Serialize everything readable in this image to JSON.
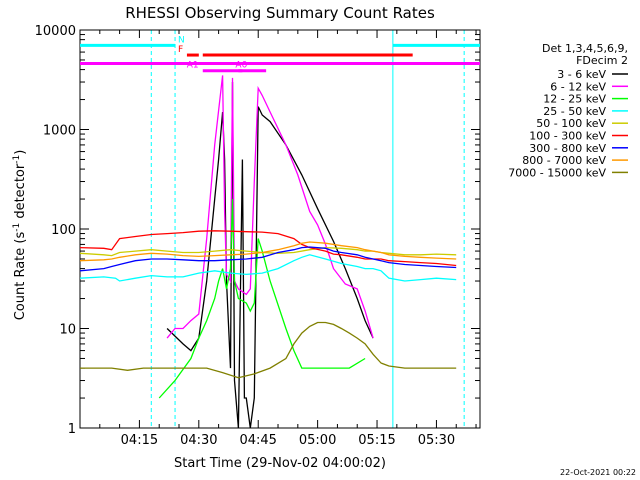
{
  "chart_data": {
    "type": "line",
    "title": "RHESSI Observing Summary Count Rates",
    "xlabel": "Start Time (29-Nov-02 04:00:02)",
    "ylabel_main": "Count Rate (s",
    "ylabel_sup1": "-1",
    "ylabel_mid": " detector",
    "ylabel_sup2": "-1",
    "ylabel_end": ")",
    "y_scale": "log",
    "ylim": [
      1,
      10000
    ],
    "xlim_minutes": [
      0,
      101
    ],
    "x_ticks": [
      {
        "t": 15,
        "label": "04:15"
      },
      {
        "t": 30,
        "label": "04:30"
      },
      {
        "t": 45,
        "label": "04:45"
      },
      {
        "t": 60,
        "label": "05:00"
      },
      {
        "t": 75,
        "label": "05:15"
      },
      {
        "t": 90,
        "label": "05:30"
      }
    ],
    "y_ticks": [
      {
        "v": 1,
        "label": "1"
      },
      {
        "v": 10,
        "label": "10"
      },
      {
        "v": 100,
        "label": "100"
      },
      {
        "v": 1000,
        "label": "1000"
      },
      {
        "v": 10000,
        "label": "10000"
      }
    ],
    "legend_header": [
      "Det 1,3,4,5,6,9,",
      "FDecim 2"
    ],
    "legend_placement": "right",
    "date_stamp": "22-Oct-2021 00:22",
    "series": [
      {
        "name": "3 - 6 keV",
        "color": "#000000",
        "points": [
          [
            22,
            10
          ],
          [
            26,
            7
          ],
          [
            28,
            6
          ],
          [
            30,
            8
          ],
          [
            32,
            30
          ],
          [
            34,
            200
          ],
          [
            35,
            500
          ],
          [
            36,
            1500
          ],
          [
            36.5,
            500
          ],
          [
            37,
            30
          ],
          [
            38,
            4
          ],
          [
            38.5,
            3000
          ],
          [
            39,
            3
          ],
          [
            40,
            1
          ],
          [
            41,
            500
          ],
          [
            41.5,
            2
          ],
          [
            42,
            2
          ],
          [
            43,
            1
          ],
          [
            44,
            2
          ],
          [
            45,
            1700
          ],
          [
            46,
            1400
          ],
          [
            48,
            1200
          ],
          [
            52,
            700
          ],
          [
            56,
            350
          ],
          [
            60,
            160
          ],
          [
            64,
            75
          ],
          [
            67,
            40
          ],
          [
            70,
            20
          ],
          [
            72,
            12
          ],
          [
            74,
            8
          ]
        ]
      },
      {
        "name": "6 - 12 keV",
        "color": "#ff00ff",
        "points": [
          [
            22,
            8
          ],
          [
            24,
            10
          ],
          [
            26,
            10
          ],
          [
            28,
            12
          ],
          [
            30,
            14
          ],
          [
            32,
            80
          ],
          [
            34,
            700
          ],
          [
            36,
            3500
          ],
          [
            36.5,
            150
          ],
          [
            37,
            35
          ],
          [
            38,
            30
          ],
          [
            38.5,
            3300
          ],
          [
            39,
            30
          ],
          [
            40,
            25
          ],
          [
            42,
            22
          ],
          [
            43,
            25
          ],
          [
            44,
            300
          ],
          [
            45,
            2600
          ],
          [
            46,
            2200
          ],
          [
            48,
            1500
          ],
          [
            52,
            700
          ],
          [
            55,
            350
          ],
          [
            58,
            150
          ],
          [
            60,
            110
          ],
          [
            62,
            70
          ],
          [
            64,
            40
          ],
          [
            67,
            28
          ],
          [
            70,
            25
          ],
          [
            72,
            15
          ],
          [
            74,
            8
          ]
        ]
      },
      {
        "name": "12 - 25 keV",
        "color": "#00ff00",
        "points": [
          [
            20,
            2
          ],
          [
            24,
            3
          ],
          [
            28,
            5
          ],
          [
            30,
            8
          ],
          [
            32,
            12
          ],
          [
            34,
            20
          ],
          [
            35,
            30
          ],
          [
            36,
            40
          ],
          [
            37,
            25
          ],
          [
            38,
            40
          ],
          [
            38.5,
            200
          ],
          [
            39,
            30
          ],
          [
            40,
            20
          ],
          [
            42,
            18
          ],
          [
            43,
            15
          ],
          [
            44,
            18
          ],
          [
            45,
            80
          ],
          [
            46,
            60
          ],
          [
            48,
            30
          ],
          [
            52,
            10
          ],
          [
            54,
            6
          ],
          [
            56,
            4
          ],
          [
            58,
            4
          ],
          [
            62,
            4
          ],
          [
            64,
            4
          ],
          [
            66,
            4
          ],
          [
            68,
            4
          ],
          [
            72,
            5
          ]
        ]
      },
      {
        "name": "25 - 50 keV",
        "color": "#00ffff",
        "points": [
          [
            0,
            32
          ],
          [
            6,
            33
          ],
          [
            9,
            32
          ],
          [
            10,
            30
          ],
          [
            14,
            32
          ],
          [
            18,
            34
          ],
          [
            22,
            33
          ],
          [
            26,
            33
          ],
          [
            30,
            36
          ],
          [
            34,
            38
          ],
          [
            38,
            36
          ],
          [
            42,
            35
          ],
          [
            46,
            36
          ],
          [
            50,
            40
          ],
          [
            54,
            48
          ],
          [
            56,
            52
          ],
          [
            58,
            55
          ],
          [
            62,
            50
          ],
          [
            66,
            45
          ],
          [
            70,
            42
          ],
          [
            72,
            40
          ],
          [
            74,
            40
          ],
          [
            76,
            38
          ],
          [
            78,
            32
          ],
          [
            82,
            30
          ],
          [
            86,
            31
          ],
          [
            90,
            32
          ],
          [
            95,
            31
          ]
        ]
      },
      {
        "name": "50 - 100 keV",
        "color": "#cccc00",
        "points": [
          [
            0,
            57
          ],
          [
            6,
            55
          ],
          [
            8,
            54
          ],
          [
            10,
            58
          ],
          [
            14,
            60
          ],
          [
            18,
            62
          ],
          [
            22,
            60
          ],
          [
            26,
            58
          ],
          [
            30,
            58
          ],
          [
            34,
            60
          ],
          [
            38,
            62
          ],
          [
            42,
            60
          ],
          [
            46,
            58
          ],
          [
            50,
            57
          ],
          [
            54,
            58
          ],
          [
            58,
            62
          ],
          [
            62,
            65
          ],
          [
            66,
            64
          ],
          [
            70,
            62
          ],
          [
            72,
            60
          ],
          [
            74,
            60
          ],
          [
            76,
            58
          ],
          [
            78,
            57
          ],
          [
            82,
            55
          ],
          [
            86,
            55
          ],
          [
            90,
            56
          ],
          [
            95,
            55
          ]
        ]
      },
      {
        "name": "100 - 300 keV",
        "color": "#ff0000",
        "points": [
          [
            0,
            65
          ],
          [
            6,
            64
          ],
          [
            8,
            62
          ],
          [
            10,
            80
          ],
          [
            14,
            84
          ],
          [
            18,
            88
          ],
          [
            22,
            90
          ],
          [
            26,
            92
          ],
          [
            30,
            95
          ],
          [
            34,
            96
          ],
          [
            38,
            95
          ],
          [
            42,
            94
          ],
          [
            46,
            93
          ],
          [
            50,
            90
          ],
          [
            54,
            80
          ],
          [
            56,
            70
          ],
          [
            58,
            65
          ],
          [
            62,
            60
          ],
          [
            64,
            56
          ],
          [
            66,
            55
          ],
          [
            70,
            52
          ],
          [
            72,
            50
          ],
          [
            74,
            50
          ],
          [
            76,
            50
          ],
          [
            78,
            48
          ],
          [
            82,
            47
          ],
          [
            86,
            46
          ],
          [
            90,
            45
          ],
          [
            95,
            43
          ]
        ]
      },
      {
        "name": "300 - 800 keV",
        "color": "#0000ff",
        "points": [
          [
            0,
            38
          ],
          [
            6,
            40
          ],
          [
            8,
            42
          ],
          [
            10,
            44
          ],
          [
            14,
            48
          ],
          [
            18,
            50
          ],
          [
            22,
            50
          ],
          [
            26,
            49
          ],
          [
            30,
            48
          ],
          [
            34,
            48
          ],
          [
            38,
            49
          ],
          [
            42,
            50
          ],
          [
            46,
            52
          ],
          [
            50,
            58
          ],
          [
            54,
            62
          ],
          [
            56,
            65
          ],
          [
            58,
            66
          ],
          [
            62,
            64
          ],
          [
            64,
            60
          ],
          [
            66,
            58
          ],
          [
            70,
            55
          ],
          [
            72,
            52
          ],
          [
            74,
            50
          ],
          [
            76,
            48
          ],
          [
            78,
            46
          ],
          [
            82,
            44
          ],
          [
            86,
            43
          ],
          [
            90,
            42
          ],
          [
            95,
            41
          ]
        ]
      },
      {
        "name": "800 - 7000 keV",
        "color": "#ff9900",
        "points": [
          [
            0,
            48
          ],
          [
            6,
            49
          ],
          [
            8,
            50
          ],
          [
            10,
            52
          ],
          [
            14,
            55
          ],
          [
            18,
            57
          ],
          [
            22,
            56
          ],
          [
            26,
            54
          ],
          [
            30,
            53
          ],
          [
            34,
            54
          ],
          [
            38,
            55
          ],
          [
            42,
            56
          ],
          [
            46,
            58
          ],
          [
            50,
            62
          ],
          [
            54,
            68
          ],
          [
            56,
            72
          ],
          [
            58,
            74
          ],
          [
            62,
            72
          ],
          [
            66,
            68
          ],
          [
            70,
            65
          ],
          [
            72,
            62
          ],
          [
            74,
            60
          ],
          [
            76,
            58
          ],
          [
            78,
            55
          ],
          [
            82,
            53
          ],
          [
            86,
            52
          ],
          [
            90,
            51
          ],
          [
            95,
            50
          ]
        ]
      },
      {
        "name": "7000 - 15000 keV",
        "color": "#808000",
        "points": [
          [
            0,
            4
          ],
          [
            8,
            4
          ],
          [
            12,
            3.8
          ],
          [
            16,
            4
          ],
          [
            20,
            4
          ],
          [
            26,
            4
          ],
          [
            32,
            4
          ],
          [
            36,
            3.6
          ],
          [
            40,
            3.2
          ],
          [
            44,
            3.5
          ],
          [
            48,
            4
          ],
          [
            52,
            5
          ],
          [
            54,
            7
          ],
          [
            56,
            9
          ],
          [
            58,
            10.5
          ],
          [
            60,
            11.5
          ],
          [
            62,
            11.5
          ],
          [
            64,
            11
          ],
          [
            66,
            10
          ],
          [
            68,
            9
          ],
          [
            70,
            8
          ],
          [
            72,
            7
          ],
          [
            74,
            5.5
          ],
          [
            76,
            4.5
          ],
          [
            78,
            4.2
          ],
          [
            82,
            4
          ],
          [
            86,
            4
          ],
          [
            90,
            4
          ],
          [
            95,
            4
          ]
        ]
      }
    ],
    "state_bars": [
      {
        "label": "N",
        "color": "#00ffff",
        "segments": [
          [
            0,
            24
          ],
          [
            79,
            101
          ]
        ]
      },
      {
        "label": "F",
        "color": "#ff0000",
        "segments": [
          [
            27,
            30
          ],
          [
            31,
            84
          ]
        ]
      },
      {
        "label": "A1",
        "color": "#ff00ff",
        "segments": [
          [
            31,
            41
          ]
        ]
      },
      {
        "label": "A0",
        "color": "#ff00ff",
        "segments": [
          [
            40,
            47
          ]
        ]
      },
      {
        "label": "",
        "color": "#ff00ff",
        "segments": [
          [
            0,
            101
          ]
        ]
      }
    ],
    "vertical_markers": [
      {
        "t": 0,
        "color": "#00ffff",
        "style": "dashed"
      },
      {
        "t": 18,
        "color": "#00ffff",
        "style": "dashed"
      },
      {
        "t": 24,
        "color": "#00ffff",
        "style": "dashed"
      },
      {
        "t": 79,
        "color": "#00ffff",
        "style": "solid"
      },
      {
        "t": 97,
        "color": "#00ffff",
        "style": "dashed"
      }
    ]
  }
}
